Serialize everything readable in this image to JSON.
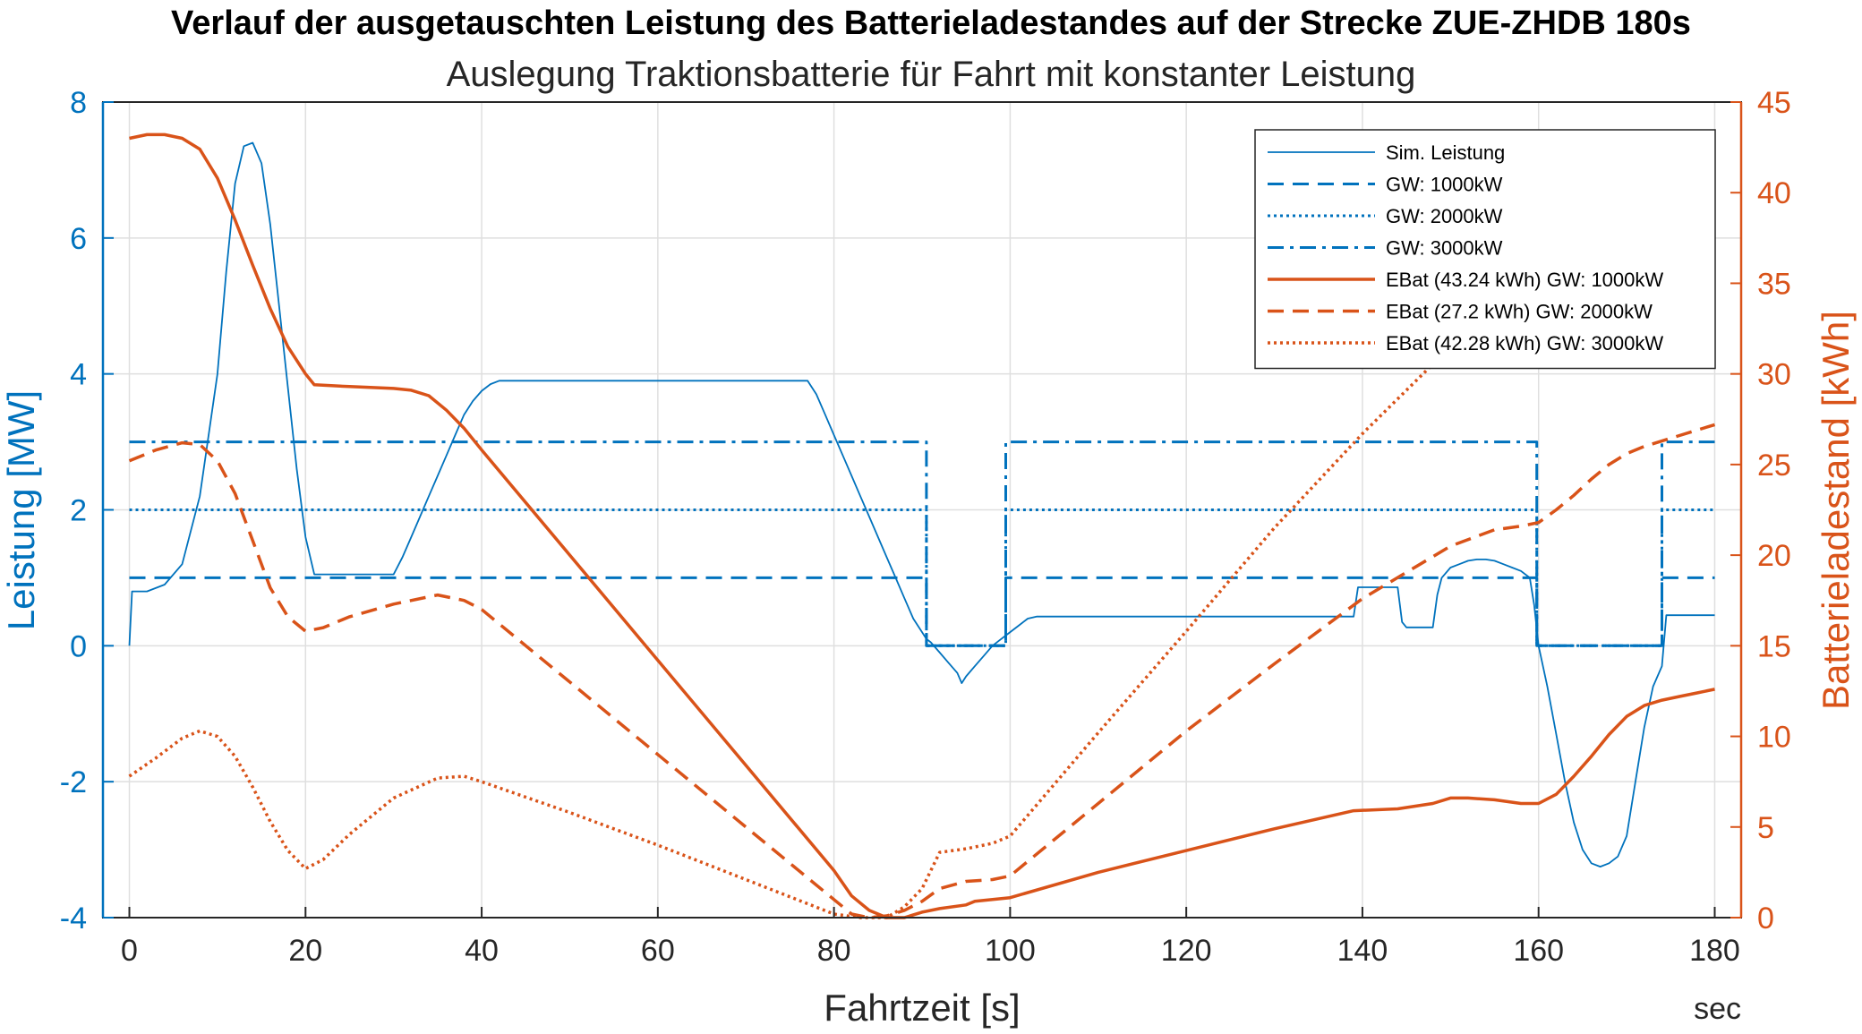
{
  "chart_data": {
    "type": "line",
    "title": "Verlauf der ausgetauschten Leistung des Batterieladestandes auf der Strecke ZUE-ZHDB 180s",
    "subtitle": "Auslegung Traktionsbatterie für Fahrt mit konstanter Leistung",
    "xlabel": "Fahrtzeit [s]",
    "x_unit_label": "sec",
    "ylabel_left": "Leistung [MW]",
    "ylabel_right": "Batterieladestand [kWh]",
    "xlim": [
      -3,
      183
    ],
    "ylim_left": [
      -4,
      8
    ],
    "ylim_right": [
      0,
      45
    ],
    "x_ticks": [
      "0",
      "20",
      "40",
      "60",
      "80",
      "100",
      "120",
      "140",
      "160",
      "180"
    ],
    "y_left_ticks": [
      "-4",
      "-2",
      "0",
      "2",
      "4",
      "6",
      "8"
    ],
    "y_right_ticks": [
      "0",
      "5",
      "10",
      "15",
      "20",
      "25",
      "30",
      "35",
      "40",
      "45"
    ],
    "grid": true,
    "legend_position": "top-right",
    "colors": {
      "blue": "#0072BD",
      "orange": "#D95319",
      "axis_blue": "#0072BD",
      "axis_orange": "#D95319",
      "grid": "#DFDFDF"
    },
    "series": [
      {
        "name": "Sim. Leistung",
        "axis": "left",
        "color": "#0072BD",
        "style": "solid",
        "x": [
          0,
          0.3,
          2,
          4,
          6,
          8,
          10,
          11,
          12,
          13,
          14,
          15,
          16,
          17,
          18,
          19,
          20,
          21,
          22,
          24,
          26,
          28,
          30,
          31,
          32,
          33,
          34,
          35,
          36,
          37,
          38,
          39,
          40,
          41,
          42,
          45,
          50,
          60,
          70,
          77,
          78,
          79,
          80,
          81,
          82,
          83,
          84,
          85,
          86,
          87,
          88,
          89,
          90,
          90.5,
          91,
          92,
          93,
          94,
          94.5,
          95,
          96,
          97,
          98,
          99,
          100,
          101,
          102,
          103,
          110,
          120,
          130,
          139,
          139.5,
          141,
          144,
          144.5,
          145,
          146,
          148,
          148.5,
          149,
          150,
          151,
          152,
          153,
          154,
          155,
          156,
          157,
          158,
          159,
          159.5,
          160,
          161,
          162,
          163,
          164,
          165,
          166,
          167,
          168,
          169,
          170,
          171,
          172,
          173,
          174,
          174.5,
          175,
          176,
          177,
          178,
          179,
          180
        ],
        "y": [
          0,
          0.8,
          0.8,
          0.9,
          1.2,
          2.2,
          4.0,
          5.5,
          6.8,
          7.35,
          7.4,
          7.1,
          6.2,
          5.0,
          3.8,
          2.6,
          1.6,
          1.05,
          1.05,
          1.05,
          1.05,
          1.05,
          1.05,
          1.3,
          1.6,
          1.9,
          2.2,
          2.5,
          2.8,
          3.1,
          3.4,
          3.6,
          3.75,
          3.85,
          3.9,
          3.9,
          3.9,
          3.9,
          3.9,
          3.9,
          3.7,
          3.4,
          3.1,
          2.8,
          2.5,
          2.2,
          1.9,
          1.6,
          1.3,
          1.0,
          0.7,
          0.4,
          0.2,
          0.1,
          0.05,
          -0.1,
          -0.25,
          -0.4,
          -0.55,
          -0.45,
          -0.3,
          -0.15,
          0,
          0.1,
          0.2,
          0.3,
          0.4,
          0.43,
          0.43,
          0.43,
          0.43,
          0.43,
          0.86,
          0.86,
          0.86,
          0.35,
          0.27,
          0.27,
          0.27,
          0.75,
          1.0,
          1.15,
          1.2,
          1.25,
          1.27,
          1.27,
          1.25,
          1.2,
          1.15,
          1.1,
          1.0,
          0.6,
          0.0,
          -0.6,
          -1.3,
          -2.0,
          -2.6,
          -3.0,
          -3.2,
          -3.25,
          -3.2,
          -3.1,
          -2.8,
          -2.0,
          -1.2,
          -0.6,
          -0.3,
          0.45,
          0.45,
          0.45,
          0.45,
          0.45,
          0.45,
          0.45
        ]
      },
      {
        "name": "GW: 1000kW",
        "axis": "left",
        "color": "#0072BD",
        "style": "dashed",
        "x": [
          0,
          90.5,
          90.5,
          99.5,
          99.5,
          159.8,
          159.8,
          174,
          174,
          180
        ],
        "y": [
          1,
          1,
          0,
          0,
          1,
          1,
          0,
          0,
          1,
          1
        ]
      },
      {
        "name": "GW: 2000kW",
        "axis": "left",
        "color": "#0072BD",
        "style": "dotted",
        "x": [
          0,
          90.5,
          90.5,
          99.5,
          99.5,
          159.8,
          159.8,
          174,
          174,
          180
        ],
        "y": [
          2,
          2,
          0,
          0,
          2,
          2,
          0,
          0,
          2,
          2
        ]
      },
      {
        "name": "GW: 3000kW",
        "axis": "left",
        "color": "#0072BD",
        "style": "dashdot",
        "x": [
          0,
          90.5,
          90.5,
          99.5,
          99.5,
          159.8,
          159.8,
          174,
          174,
          180
        ],
        "y": [
          3,
          3,
          0,
          0,
          3,
          3,
          0,
          0,
          3,
          3
        ]
      },
      {
        "name": "EBat (43.24 kWh) GW: 1000kW",
        "axis": "right",
        "color": "#D95319",
        "style": "solid",
        "x": [
          0,
          2,
          4,
          6,
          8,
          10,
          12,
          14,
          16,
          18,
          20,
          21,
          25,
          30,
          32,
          34,
          36,
          38,
          40,
          50,
          60,
          70,
          80,
          82,
          84,
          86,
          88,
          90,
          92,
          95,
          96,
          98,
          100,
          110,
          120,
          130,
          139,
          144,
          148,
          150,
          152,
          155,
          158,
          160,
          162,
          164,
          166,
          168,
          170,
          172,
          174,
          176,
          178,
          180
        ],
        "y": [
          43.0,
          43.2,
          43.2,
          43.0,
          42.4,
          40.8,
          38.5,
          36.0,
          33.6,
          31.5,
          30.0,
          29.4,
          29.3,
          29.2,
          29.1,
          28.8,
          28.0,
          27.0,
          25.8,
          20.0,
          14.2,
          8.4,
          2.6,
          1.2,
          0.4,
          0.0,
          0.0,
          0.3,
          0.5,
          0.7,
          0.9,
          1.0,
          1.1,
          2.5,
          3.7,
          4.9,
          5.9,
          6.0,
          6.3,
          6.6,
          6.6,
          6.5,
          6.3,
          6.3,
          6.8,
          7.8,
          8.9,
          10.1,
          11.1,
          11.7,
          12.0,
          12.2,
          12.4,
          12.6
        ]
      },
      {
        "name": "EBat (27.2 kWh) GW: 2000kW",
        "axis": "right",
        "color": "#D95319",
        "style": "dashed",
        "x": [
          0,
          3,
          6,
          8,
          10,
          12,
          14,
          16,
          18,
          20,
          22,
          25,
          30,
          35,
          38,
          40,
          50,
          60,
          70,
          80,
          82,
          84,
          86,
          88,
          90,
          92,
          95,
          98,
          100,
          110,
          120,
          130,
          140,
          150,
          155,
          158,
          160,
          162,
          164,
          166,
          168,
          170,
          172,
          174,
          176,
          178,
          180
        ],
        "y": [
          25.2,
          25.8,
          26.2,
          26.1,
          25.2,
          23.4,
          20.8,
          18.2,
          16.6,
          15.8,
          16.0,
          16.6,
          17.3,
          17.8,
          17.5,
          17.0,
          13.0,
          9.0,
          5.0,
          1.0,
          0.2,
          0.0,
          0.1,
          0.4,
          0.9,
          1.6,
          2.0,
          2.1,
          2.3,
          6.3,
          10.3,
          14.0,
          17.6,
          20.5,
          21.4,
          21.6,
          21.8,
          22.5,
          23.3,
          24.2,
          25.0,
          25.6,
          26.0,
          26.3,
          26.6,
          26.9,
          27.2
        ]
      },
      {
        "name": "EBat (42.28 kWh) GW: 3000kW",
        "axis": "right",
        "color": "#D95319",
        "style": "dotted",
        "x": [
          0,
          3,
          6,
          8,
          10,
          12,
          14,
          16,
          18,
          20,
          22,
          25,
          30,
          35,
          38,
          40,
          50,
          60,
          70,
          80,
          83,
          86,
          88,
          90,
          92,
          95,
          98,
          100,
          110,
          120,
          130,
          140,
          150,
          160,
          170,
          180
        ],
        "y": [
          7.8,
          8.8,
          9.9,
          10.3,
          10.0,
          8.9,
          7.2,
          5.3,
          3.7,
          2.7,
          3.2,
          4.6,
          6.6,
          7.7,
          7.8,
          7.5,
          5.8,
          4.0,
          2.1,
          0.2,
          0.0,
          0.0,
          0.6,
          1.6,
          3.6,
          3.8,
          4.1,
          4.5,
          10.2,
          15.8,
          21.5,
          26.7,
          31.5,
          36.6,
          40.0,
          42.28
        ]
      }
    ]
  }
}
